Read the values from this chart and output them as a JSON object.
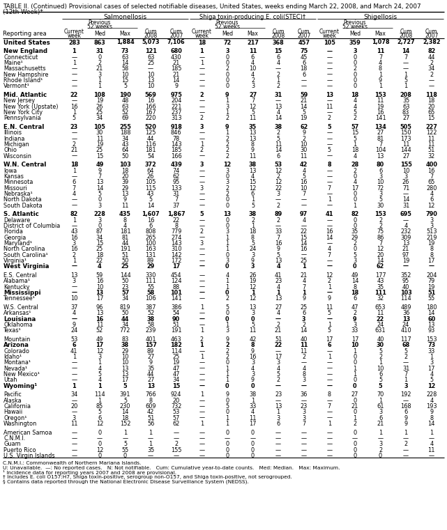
{
  "title": "TABLE II. (Continued) Provisional cases of selected notifiable diseases, United States, weeks ending March 22, 2008, and March 24, 2007",
  "subtitle": "(12th Week)*",
  "col_groups": [
    "Salmonellosis",
    "Shiga toxin-producing E. coli(STEC)†",
    "Shigellosis"
  ],
  "rows": [
    [
      "United States",
      "283",
      "863",
      "1,884",
      "5,073",
      "7,106",
      "18",
      "72",
      "217",
      "368",
      "457",
      "105",
      "359",
      "1,078",
      "2,727",
      "2,382"
    ],
    [
      "",
      "",
      "",
      "",
      "",
      "",
      "",
      "",
      "",
      "",
      "",
      "",
      "",
      "",
      "",
      ""
    ],
    [
      "New England",
      "1",
      "31",
      "73",
      "121",
      "680",
      "1",
      "3",
      "11",
      "15",
      "75",
      "—",
      "3",
      "11",
      "14",
      "82"
    ],
    [
      "Connecticut",
      "—",
      "0",
      "63",
      "63",
      "430",
      "—",
      "0",
      "6",
      "6",
      "45",
      "—",
      "0",
      "7",
      "7",
      "44"
    ],
    [
      "Maine¹",
      "1",
      "2",
      "14",
      "25",
      "21",
      "1",
      "0",
      "4",
      "4",
      "6",
      "—",
      "0",
      "4",
      "—",
      "2"
    ],
    [
      "Massachusetts",
      "—",
      "21",
      "58",
      "—",
      "185",
      "—",
      "2",
      "10",
      "—",
      "18",
      "—",
      "2",
      "8",
      "—",
      "34"
    ],
    [
      "New Hampshire",
      "—",
      "3",
      "10",
      "10",
      "21",
      "—",
      "0",
      "4",
      "2",
      "6",
      "—",
      "0",
      "1",
      "1",
      "2"
    ],
    [
      "Rhode Island¹",
      "—",
      "1",
      "15",
      "13",
      "14",
      "—",
      "0",
      "2",
      "1",
      "—",
      "—",
      "0",
      "9",
      "5",
      "—"
    ],
    [
      "Vermont¹",
      "—",
      "1",
      "5",
      "10",
      "9",
      "—",
      "0",
      "3",
      "2",
      "—",
      "—",
      "0",
      "1",
      "1",
      "—"
    ],
    [
      "",
      "",
      "",
      "",
      "",
      "",
      "",
      "",
      "",
      "",
      "",
      "",
      "",
      "",
      "",
      ""
    ],
    [
      "Mid. Atlantic",
      "22",
      "108",
      "190",
      "569",
      "975",
      "2",
      "9",
      "27",
      "31",
      "59",
      "13",
      "18",
      "153",
      "208",
      "118"
    ],
    [
      "New Jersey",
      "—",
      "19",
      "48",
      "16",
      "204",
      "—",
      "1",
      "7",
      "—",
      "21",
      "—",
      "4",
      "11",
      "35",
      "18"
    ],
    [
      "New York (Upstate)",
      "16",
      "26",
      "63",
      "166",
      "221",
      "—",
      "3",
      "12",
      "13",
      "14",
      "11",
      "4",
      "19",
      "63",
      "20"
    ],
    [
      "New York City",
      "1",
      "25",
      "52",
      "167",
      "237",
      "—",
      "1",
      "5",
      "4",
      "5",
      "—",
      "5",
      "16",
      "83",
      "65"
    ],
    [
      "Pennsylvania",
      "5",
      "34",
      "69",
      "220",
      "313",
      "2",
      "2",
      "11",
      "14",
      "19",
      "2",
      "2",
      "141",
      "27",
      "15"
    ],
    [
      "",
      "",
      "",
      "",
      "",
      "",
      "",
      "",
      "",
      "",
      "",
      "",
      "",
      "",
      "",
      ""
    ],
    [
      "E.N. Central",
      "23",
      "105",
      "255",
      "520",
      "918",
      "3",
      "9",
      "35",
      "38",
      "62",
      "5",
      "57",
      "134",
      "505",
      "227"
    ],
    [
      "Illinois",
      "—",
      "30",
      "188",
      "125",
      "846",
      "—",
      "1",
      "13",
      "2",
      "9",
      "—",
      "15",
      "27",
      "150",
      "122"
    ],
    [
      "Indiana",
      "—",
      "11",
      "34",
      "44",
      "78",
      "—",
      "2",
      "13",
      "5",
      "2",
      "—",
      "5",
      "81",
      "173",
      "11"
    ],
    [
      "Michigan",
      "2",
      "19",
      "43",
      "116",
      "143",
      "1",
      "2",
      "8",
      "11",
      "10",
      "—",
      "1",
      "7",
      "11",
      "11"
    ],
    [
      "Ohio",
      "21",
      "25",
      "64",
      "181",
      "185",
      "2",
      "2",
      "9",
      "14",
      "30",
      "5",
      "18",
      "104",
      "144",
      "51"
    ],
    [
      "Wisconsin",
      "—",
      "15",
      "50",
      "54",
      "166",
      "—",
      "2",
      "11",
      "6",
      "11",
      "—",
      "4",
      "13",
      "27",
      "32"
    ],
    [
      "",
      "",
      "",
      "",
      "",
      "",
      "",
      "",
      "",
      "",
      "",
      "",
      "",
      "",
      "",
      ""
    ],
    [
      "W.N. Central",
      "18",
      "49",
      "103",
      "372",
      "439",
      "3",
      "12",
      "38",
      "53",
      "42",
      "8",
      "28",
      "80",
      "155",
      "400"
    ],
    [
      "Iowa",
      "1",
      "9",
      "18",
      "64",
      "74",
      "—",
      "3",
      "13",
      "12",
      "4",
      "—",
      "2",
      "6",
      "10",
      "16"
    ],
    [
      "Kansas",
      "—",
      "7",
      "20",
      "26",
      "62",
      "—",
      "0",
      "4",
      "2",
      "5",
      "—",
      "0",
      "3",
      "3",
      "7"
    ],
    [
      "Minnesota",
      "6",
      "13",
      "39",
      "105",
      "95",
      "—",
      "3",
      "15",
      "12",
      "16",
      "—",
      "4",
      "10",
      "26",
      "65"
    ],
    [
      "Missouri",
      "7",
      "14",
      "29",
      "115",
      "133",
      "3",
      "2",
      "12",
      "22",
      "10",
      "7",
      "17",
      "72",
      "71",
      "280"
    ],
    [
      "Nebraska¹",
      "4",
      "5",
      "13",
      "43",
      "31",
      "—",
      "2",
      "6",
      "3",
      "7",
      "—",
      "0",
      "3",
      "—",
      "4"
    ],
    [
      "North Dakota",
      "—",
      "0",
      "9",
      "5",
      "7",
      "—",
      "0",
      "1",
      "—",
      "—",
      "1",
      "0",
      "5",
      "14",
      "6"
    ],
    [
      "South Dakota",
      "—",
      "3",
      "11",
      "14",
      "37",
      "—",
      "0",
      "5",
      "2",
      "—",
      "—",
      "1",
      "30",
      "31",
      "12"
    ],
    [
      "",
      "",
      "",
      "",
      "",
      "",
      "",
      "",
      "",
      "",
      "",
      "",
      "",
      "",
      "",
      ""
    ],
    [
      "S. Atlantic",
      "82",
      "228",
      "435",
      "1,607",
      "1,867",
      "5",
      "13",
      "38",
      "89",
      "97",
      "41",
      "82",
      "153",
      "695",
      "790"
    ],
    [
      "Delaware",
      "1",
      "3",
      "8",
      "16",
      "22",
      "—",
      "0",
      "2",
      "2",
      "4",
      "—",
      "0",
      "2",
      "—",
      "3"
    ],
    [
      "District of Columbia",
      "—",
      "0",
      "4",
      "6",
      "8",
      "—",
      "0",
      "1",
      "—",
      "—",
      "—",
      "0",
      "2",
      "4",
      "3"
    ],
    [
      "Florida",
      "43",
      "87",
      "181",
      "808",
      "779",
      "2",
      "3",
      "18",
      "33",
      "22",
      "16",
      "35",
      "75",
      "232",
      "513"
    ],
    [
      "Georgia",
      "16",
      "34",
      "81",
      "265",
      "274",
      "—",
      "1",
      "8",
      "7",
      "15",
      "14",
      "29",
      "86",
      "309",
      "219"
    ],
    [
      "Maryland¹",
      "3",
      "15",
      "44",
      "100",
      "143",
      "3",
      "1",
      "5",
      "16",
      "14",
      "—",
      "2",
      "7",
      "13",
      "19"
    ],
    [
      "North Carolina",
      "16",
      "25",
      "191",
      "163",
      "310",
      "—",
      "1",
      "24",
      "9",
      "16",
      "4",
      "0",
      "12",
      "21",
      "8"
    ],
    [
      "South Carolina¹",
      "2",
      "18",
      "51",
      "131",
      "142",
      "—",
      "0",
      "3",
      "5",
      "—",
      "7",
      "5",
      "20",
      "97",
      "8"
    ],
    [
      "Virginia¹",
      "1",
      "22",
      "50",
      "89",
      "172",
      "—",
      "3",
      "9",
      "13",
      "25",
      "—",
      "3",
      "14",
      "19",
      "17"
    ],
    [
      "West Virginia",
      "—",
      "4",
      "25",
      "29",
      "17",
      "—",
      "0",
      "3",
      "4",
      "1",
      "—",
      "0",
      "62",
      "—",
      "—"
    ],
    [
      "",
      "",
      "",
      "",
      "",
      "",
      "",
      "",
      "",
      "",
      "",
      "",
      "",
      "",
      "",
      ""
    ],
    [
      "E.S. Central",
      "13",
      "59",
      "144",
      "330",
      "454",
      "—",
      "4",
      "26",
      "41",
      "21",
      "12",
      "49",
      "177",
      "352",
      "204"
    ],
    [
      "Alabama¹",
      "3",
      "16",
      "50",
      "111",
      "124",
      "—",
      "1",
      "19",
      "23",
      "4",
      "2",
      "14",
      "43",
      "95",
      "79"
    ],
    [
      "Kentucky",
      "—",
      "10",
      "23",
      "55",
      "88",
      "—",
      "1",
      "12",
      "4",
      "7",
      "1",
      "8",
      "35",
      "40",
      "19"
    ],
    [
      "Mississippi",
      "—",
      "13",
      "57",
      "58",
      "101",
      "—",
      "0",
      "1",
      "1",
      "1",
      "—",
      "18",
      "111",
      "103",
      "51"
    ],
    [
      "Tennessee¹",
      "10",
      "17",
      "34",
      "106",
      "141",
      "—",
      "2",
      "12",
      "13",
      "9",
      "9",
      "6",
      "32",
      "114",
      "55"
    ],
    [
      "",
      "",
      "",
      "",
      "",
      "",
      "",
      "",
      "",
      "",
      "",
      "",
      "",
      "",
      "",
      ""
    ],
    [
      "W.S. Central",
      "37",
      "96",
      "819",
      "387",
      "386",
      "1",
      "5",
      "13",
      "27",
      "25",
      "11",
      "47",
      "653",
      "489",
      "180"
    ],
    [
      "Arkansas¹",
      "4",
      "13",
      "50",
      "52",
      "54",
      "—",
      "0",
      "3",
      "4",
      "6",
      "5",
      "2",
      "11",
      "36",
      "14"
    ],
    [
      "Louisiana",
      "—",
      "16",
      "44",
      "38",
      "90",
      "—",
      "0",
      "0",
      "—",
      "3",
      "—",
      "9",
      "22",
      "13",
      "60"
    ],
    [
      "Oklahoma",
      "9",
      "11",
      "34",
      "58",
      "51",
      "—",
      "1",
      "5",
      "2",
      "2",
      "1",
      "3",
      "24",
      "24",
      "13"
    ],
    [
      "Texas¹",
      "24",
      "52",
      "772",
      "239",
      "191",
      "1",
      "3",
      "11",
      "21",
      "14",
      "5",
      "33",
      "631",
      "410",
      "93"
    ],
    [
      "",
      "",
      "",
      "",
      "",
      "",
      "",
      "",
      "",
      "",
      "",
      "",
      "",
      "",
      "",
      ""
    ],
    [
      "Mountain",
      "53",
      "49",
      "83",
      "401",
      "463",
      "2",
      "9",
      "42",
      "51",
      "40",
      "17",
      "17",
      "40",
      "117",
      "153"
    ],
    [
      "Arizona",
      "6",
      "17",
      "38",
      "157",
      "182",
      "1",
      "2",
      "8",
      "22",
      "11",
      "6",
      "10",
      "30",
      "68",
      "73"
    ],
    [
      "Colorado",
      "41",
      "12",
      "29",
      "89",
      "114",
      "—",
      "2",
      "9",
      "—",
      "11",
      "—",
      "1",
      "5",
      "5",
      "33"
    ],
    [
      "Idaho¹",
      "1",
      "3",
      "10",
      "27",
      "25",
      "1",
      "2",
      "16",
      "17",
      "2",
      "1",
      "0",
      "2",
      "2",
      "1"
    ],
    [
      "Montana¹",
      "—",
      "1",
      "10",
      "9",
      "19",
      "—",
      "0",
      "3",
      "3",
      "—",
      "—",
      "0",
      "1",
      "—",
      "3"
    ],
    [
      "Nevada¹",
      "—",
      "4",
      "13",
      "35",
      "47",
      "—",
      "1",
      "4",
      "4",
      "4",
      "—",
      "1",
      "10",
      "31",
      "17"
    ],
    [
      "New Mexico¹",
      "—",
      "5",
      "13",
      "44",
      "47",
      "—",
      "1",
      "3",
      "5",
      "8",
      "—",
      "1",
      "6",
      "7",
      "4"
    ],
    [
      "Utah",
      "—",
      "4",
      "17",
      "27",
      "34",
      "—",
      "1",
      "9",
      "2",
      "3",
      "—",
      "0",
      "5",
      "1",
      "5"
    ],
    [
      "Wyoming¹",
      "1",
      "1",
      "5",
      "13",
      "15",
      "—",
      "0",
      "0",
      "—",
      "—",
      "—",
      "0",
      "5",
      "3",
      "12"
    ],
    [
      "",
      "",
      "",
      "",
      "",
      "",
      "",
      "",
      "",
      "",
      "",
      "",
      "",
      "",
      "",
      ""
    ],
    [
      "Pacific",
      "34",
      "114",
      "391",
      "766",
      "924",
      "1",
      "9",
      "38",
      "23",
      "36",
      "8",
      "27",
      "70",
      "192",
      "228"
    ],
    [
      "Alaska",
      "—",
      "1",
      "5",
      "8",
      "20",
      "—",
      "0",
      "1",
      "—",
      "—",
      "—",
      "0",
      "1",
      "—",
      "4"
    ],
    [
      "California",
      "20",
      "85",
      "230",
      "609",
      "732",
      "—",
      "5",
      "33",
      "13",
      "23",
      "7",
      "21",
      "61",
      "168",
      "193"
    ],
    [
      "Hawaii",
      "—",
      "5",
      "14",
      "42",
      "53",
      "—",
      "0",
      "4",
      "1",
      "3",
      "—",
      "0",
      "3",
      "6",
      "9"
    ],
    [
      "Oregon¹",
      "3",
      "6",
      "18",
      "51",
      "57",
      "—",
      "1",
      "11",
      "3",
      "3",
      "—",
      "1",
      "6",
      "9",
      "8"
    ],
    [
      "Washington",
      "11",
      "12",
      "152",
      "56",
      "62",
      "1",
      "1",
      "17",
      "6",
      "7",
      "1",
      "2",
      "21",
      "9",
      "14"
    ],
    [
      "",
      "",
      "",
      "",
      "",
      "",
      "",
      "",
      "",
      "",
      "",
      "",
      "",
      "",
      "",
      ""
    ],
    [
      "American Samoa",
      "—",
      "0",
      "1",
      "1",
      "—",
      "—",
      "0",
      "0",
      "—",
      "—",
      "—",
      "0",
      "1",
      "1",
      "1"
    ],
    [
      "C.N.M.I.",
      "—",
      "—",
      "—",
      "—",
      "—",
      "—",
      "—",
      "—",
      "—",
      "—",
      "—",
      "—",
      "—",
      "—",
      "—"
    ],
    [
      "Guam",
      "—",
      "0",
      "5",
      "1",
      "2",
      "—",
      "0",
      "0",
      "—",
      "—",
      "—",
      "0",
      "3",
      "2",
      "4"
    ],
    [
      "Puerto Rico",
      "—",
      "12",
      "55",
      "35",
      "155",
      "—",
      "0",
      "0",
      "—",
      "—",
      "—",
      "0",
      "2",
      "—",
      "11"
    ],
    [
      "U.S. Virgin Islands",
      "—",
      "0",
      "0",
      "—",
      "—",
      "—",
      "0",
      "0",
      "—",
      "—",
      "—",
      "0",
      "0",
      "—",
      "—"
    ]
  ],
  "bold_rows": [
    0,
    2,
    10,
    16,
    23,
    32,
    41,
    46,
    51,
    56,
    63,
    71
  ],
  "footnotes": [
    "C.N.M.I.: Commonwealth of Northern Mariana Islands.",
    "U: Unavailable.  —: No reported cases.   N: Not notifiable.   Cum: Cumulative year-to-date counts.   Med: Median.   Max: Maximum.",
    "¹ Incidence data for reporting years 2007 and 2008 are provisional.",
    "† Includes E. coli O157:H7, Shiga toxin-positive, serogroup non-O157, and Shiga toxin-positive, not serogrouped.",
    "§ Contains data reported through the National Electronic Disease Surveillance System (NEDSS)."
  ]
}
